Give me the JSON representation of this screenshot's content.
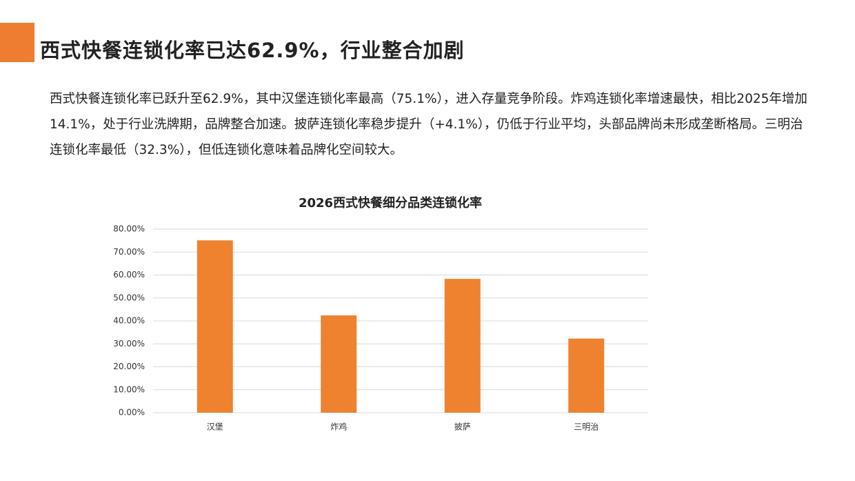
{
  "header": {
    "title": "西式快餐连锁化率已达62.9%，行业整合加剧"
  },
  "paragraph": "西式快餐连锁化率已跃升至62.9%，其中汉堡连锁化率最高（75.1%），进入存量竞争阶段。炸鸡连锁化率增速最快，相比2025年增加14.1%，处于行业洗牌期，品牌整合加速。披萨连锁化率稳步提升（+4.1%），仍低于行业平均，头部品牌尚未形成垄断格局。三明治连锁化率最低（32.3%），但低连锁化意味着品牌化空间较大。",
  "chart_data": {
    "type": "bar",
    "title": "2026西式快餐细分品类连锁化率",
    "categories": [
      "汉堡",
      "炸鸡",
      "披萨",
      "三明治"
    ],
    "values": [
      75.1,
      42.4,
      58.3,
      32.3
    ],
    "color": "#ee822f",
    "ylim": [
      0,
      80
    ],
    "yticks": [
      {
        "value": 0,
        "label": "0.00%"
      },
      {
        "value": 10,
        "label": "10.00%"
      },
      {
        "value": 20,
        "label": "20.00%"
      },
      {
        "value": 30,
        "label": "30.00%"
      },
      {
        "value": 40,
        "label": "40.00%"
      },
      {
        "value": 50,
        "label": "50.00%"
      },
      {
        "value": 60,
        "label": "60.00%"
      },
      {
        "value": 70,
        "label": "70.00%"
      },
      {
        "value": 80,
        "label": "80.00%"
      }
    ],
    "grid": true
  }
}
